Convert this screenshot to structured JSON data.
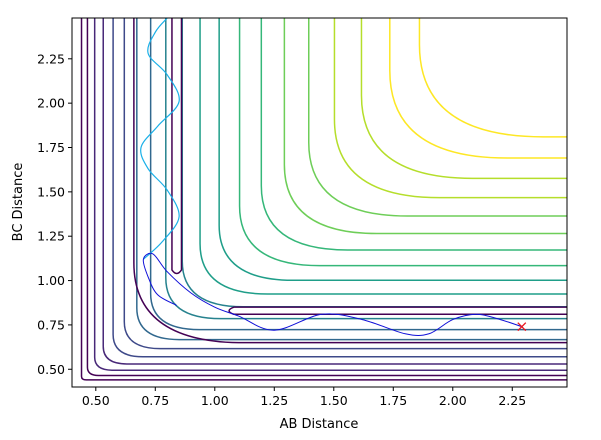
{
  "chart_data": {
    "type": "contour",
    "title": "",
    "xlabel": "AB Distance",
    "ylabel": "BC Distance",
    "xlim": [
      0.4,
      2.48
    ],
    "ylim": [
      0.4,
      2.48
    ],
    "x_ticks": [
      "0.50",
      "0.75",
      "1.00",
      "1.25",
      "1.50",
      "1.75",
      "2.00",
      "2.25"
    ],
    "y_ticks": [
      "0.50",
      "0.75",
      "1.00",
      "1.25",
      "1.50",
      "1.75",
      "2.00",
      "2.25"
    ],
    "grid": false,
    "legend": "none",
    "colormap": [
      "#440154",
      "#482878",
      "#3e4989",
      "#31688e",
      "#26828e",
      "#1f9e89",
      "#35b779",
      "#6ece58",
      "#b5de2b",
      "#fde725"
    ],
    "trajectory": {
      "color": "#1010d8",
      "points": [
        [
          0.84,
          0.86
        ],
        [
          0.76,
          0.92
        ],
        [
          0.72,
          1.02
        ],
        [
          0.7,
          1.12
        ],
        [
          0.74,
          1.15
        ],
        [
          0.8,
          1.05
        ],
        [
          0.9,
          0.93
        ],
        [
          1.0,
          0.85
        ],
        [
          1.1,
          0.8
        ],
        [
          1.25,
          0.72
        ],
        [
          1.45,
          0.81
        ],
        [
          1.62,
          0.78
        ],
        [
          1.8,
          0.7
        ],
        [
          1.9,
          0.7
        ],
        [
          2.0,
          0.78
        ],
        [
          2.1,
          0.81
        ],
        [
          2.2,
          0.78
        ],
        [
          2.29,
          0.74
        ]
      ]
    },
    "wave_trace": {
      "color": "#1ab0e8",
      "points": [
        [
          0.7,
          1.12
        ],
        [
          0.78,
          1.22
        ],
        [
          0.85,
          1.36
        ],
        [
          0.8,
          1.51
        ],
        [
          0.72,
          1.63
        ],
        [
          0.69,
          1.75
        ],
        [
          0.76,
          1.87
        ],
        [
          0.85,
          2.01
        ],
        [
          0.8,
          2.16
        ],
        [
          0.72,
          2.28
        ],
        [
          0.75,
          2.4
        ],
        [
          0.8,
          2.48
        ]
      ]
    },
    "end_marker": {
      "x": 2.29,
      "y": 0.74,
      "symbol": "x",
      "color": "#e8141e"
    }
  }
}
